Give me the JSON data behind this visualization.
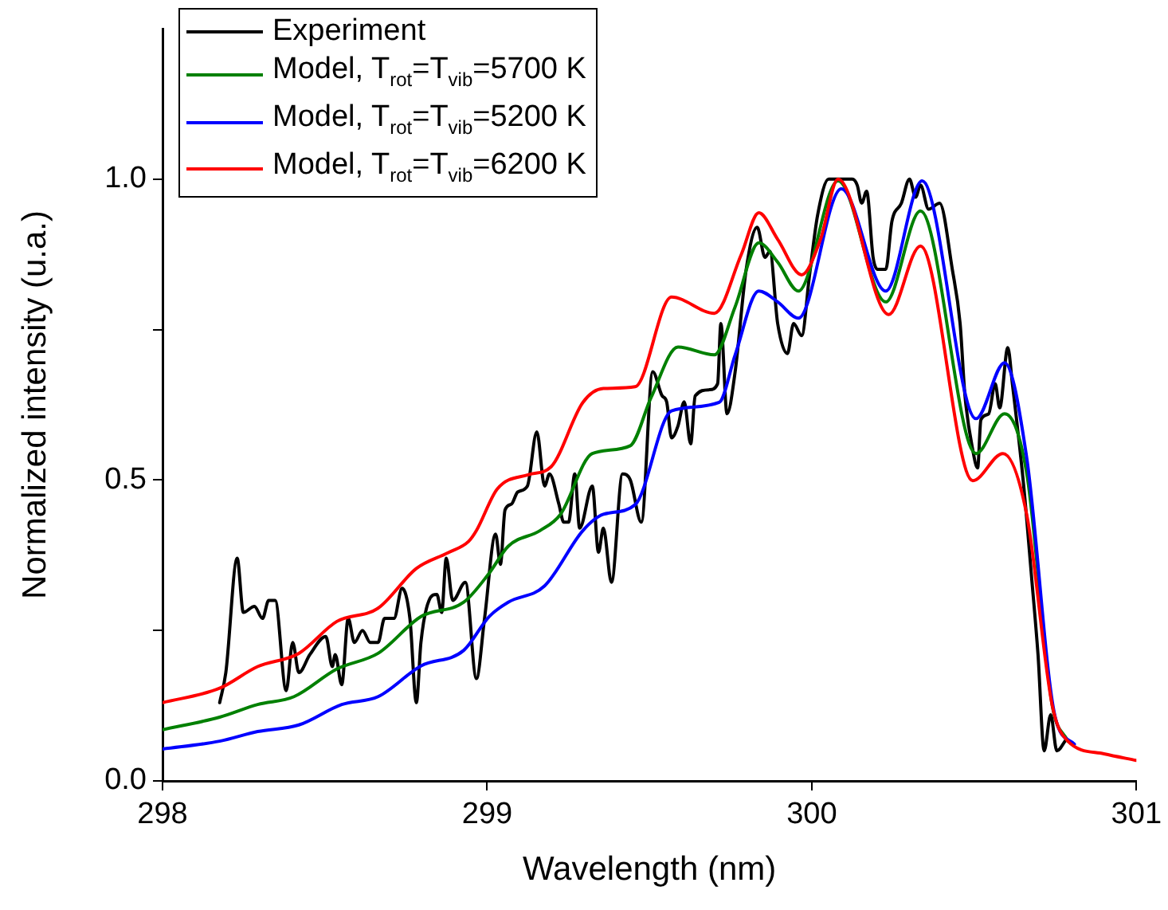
{
  "chart_data": {
    "type": "line",
    "xlabel": "Wavelength (nm)",
    "ylabel": "Normalized intensity (u.a.)",
    "xlim": [
      298,
      301
    ],
    "xticks": [
      298,
      299,
      300,
      301
    ],
    "ylim": [
      0,
      1.25
    ],
    "yticks": [
      {
        "value": 0,
        "label": "0.0"
      },
      {
        "value": 0.25,
        "label": null
      },
      {
        "value": 0.5,
        "label": "0.5"
      },
      {
        "value": 0.75,
        "label": null
      },
      {
        "value": 1,
        "label": "1.0"
      }
    ],
    "grid": false,
    "legend": "top left",
    "marker": "none",
    "line_style": "solid",
    "series": [
      {
        "name": "Experiment",
        "color": "#000000",
        "x": [
          298.176,
          298.195,
          298.23,
          298.249,
          298.283,
          298.308,
          298.327,
          298.347,
          298.381,
          298.401,
          298.42,
          298.454,
          298.503,
          298.523,
          298.532,
          298.552,
          298.572,
          298.591,
          298.616,
          298.64,
          298.664,
          298.684,
          298.713,
          298.738,
          298.762,
          298.782,
          298.796,
          298.821,
          298.845,
          298.86,
          298.874,
          298.894,
          298.933,
          298.967,
          298.992,
          299.026,
          299.041,
          299.055,
          299.075,
          299.094,
          299.124,
          299.153,
          299.177,
          299.192,
          299.221,
          299.236,
          299.251,
          299.27,
          299.285,
          299.324,
          299.343,
          299.358,
          299.383,
          299.417,
          299.441,
          299.475,
          299.51,
          299.539,
          299.553,
          299.568,
          299.588,
          299.607,
          299.627,
          299.641,
          299.685,
          299.71,
          299.72,
          299.739,
          299.764,
          299.798,
          299.832,
          299.856,
          299.871,
          299.895,
          299.925,
          299.944,
          299.969,
          299.993,
          300.018,
          300.052,
          300.125,
          300.14,
          300.154,
          300.169,
          300.189,
          300.203,
          300.228,
          300.247,
          300.276,
          300.301,
          300.32,
          300.335,
          300.36,
          300.394,
          300.433,
          300.457,
          300.472,
          300.496,
          300.511,
          300.521,
          300.545,
          300.565,
          300.579,
          300.604,
          300.618,
          300.653,
          300.677,
          300.697,
          300.716,
          300.736,
          300.755,
          300.785
        ],
        "values": [
          0.13,
          0.18,
          0.37,
          0.28,
          0.29,
          0.27,
          0.3,
          0.3,
          0.15,
          0.23,
          0.18,
          0.21,
          0.24,
          0.19,
          0.21,
          0.16,
          0.27,
          0.23,
          0.25,
          0.23,
          0.23,
          0.27,
          0.27,
          0.32,
          0.27,
          0.13,
          0.23,
          0.3,
          0.31,
          0.28,
          0.37,
          0.3,
          0.33,
          0.17,
          0.27,
          0.41,
          0.36,
          0.45,
          0.46,
          0.48,
          0.49,
          0.58,
          0.49,
          0.51,
          0.46,
          0.43,
          0.43,
          0.51,
          0.42,
          0.49,
          0.38,
          0.42,
          0.33,
          0.51,
          0.5,
          0.43,
          0.68,
          0.64,
          0.63,
          0.57,
          0.59,
          0.63,
          0.56,
          0.64,
          0.65,
          0.66,
          0.76,
          0.61,
          0.68,
          0.85,
          0.92,
          0.87,
          0.88,
          0.76,
          0.71,
          0.76,
          0.74,
          0.84,
          0.94,
          1.0,
          1.0,
          0.99,
          0.96,
          0.98,
          0.87,
          0.85,
          0.85,
          0.93,
          0.96,
          1.0,
          0.97,
          0.99,
          0.95,
          0.96,
          0.85,
          0.76,
          0.64,
          0.55,
          0.52,
          0.6,
          0.61,
          0.66,
          0.62,
          0.72,
          0.66,
          0.49,
          0.34,
          0.21,
          0.05,
          0.11,
          0.05,
          0.07
        ]
      },
      {
        "name": "Model, T$_{rot}$=T$_{vib}$=5700 K",
        "color": "#008000",
        "x": [
          298,
          298.176,
          298.293,
          298.405,
          298.537,
          298.664,
          298.796,
          298.928,
          299.006,
          299.065,
          299.163,
          299.226,
          299.324,
          299.441,
          299.505,
          299.588,
          299.7,
          299.764,
          299.837,
          299.895,
          299.959,
          300.081,
          300.228,
          300.335,
          300.506,
          300.594,
          300.662,
          300.741,
          300.789
        ],
        "values": [
          0.085,
          0.106,
          0.127,
          0.14,
          0.186,
          0.212,
          0.273,
          0.297,
          0.345,
          0.39,
          0.416,
          0.443,
          0.544,
          0.557,
          0.637,
          0.721,
          0.708,
          0.788,
          0.894,
          0.862,
          0.814,
          0.997,
          0.796,
          0.947,
          0.544,
          0.61,
          0.512,
          0.125,
          0.066
        ]
      },
      {
        "name": "Model, T$_{rot}$=T$_{vib}$=5200 K",
        "color": "#0000ff",
        "x": [
          298,
          298.176,
          298.293,
          298.42,
          298.552,
          298.664,
          298.796,
          298.928,
          299.006,
          299.065,
          299.177,
          299.295,
          299.358,
          299.456,
          299.568,
          299.715,
          299.764,
          299.837,
          299.895,
          299.959,
          300.091,
          300.228,
          300.34,
          300.506,
          300.594,
          300.662,
          300.75,
          300.809
        ],
        "values": [
          0.053,
          0.066,
          0.082,
          0.093,
          0.127,
          0.14,
          0.191,
          0.217,
          0.273,
          0.297,
          0.324,
          0.416,
          0.443,
          0.459,
          0.615,
          0.629,
          0.708,
          0.814,
          0.796,
          0.769,
          0.984,
          0.814,
          0.997,
          0.602,
          0.695,
          0.538,
          0.106,
          0.061
        ]
      },
      {
        "name": "Model, T$_{rot}$=T$_{vib}$=6200 K",
        "color": "#ff0000",
        "x": [
          298,
          298.176,
          298.293,
          298.42,
          298.537,
          298.664,
          298.782,
          298.879,
          298.943,
          298.967,
          299.031,
          299.128,
          299.197,
          299.295,
          299.358,
          299.456,
          299.568,
          299.7,
          299.783,
          299.837,
          299.895,
          299.969,
          300.027,
          300.081,
          300.237,
          300.335,
          300.496,
          300.589,
          300.662,
          300.741,
          300.789,
          300.9,
          301
        ],
        "values": [
          0.13,
          0.154,
          0.19,
          0.212,
          0.265,
          0.287,
          0.353,
          0.379,
          0.398,
          0.416,
          0.485,
          0.509,
          0.522,
          0.629,
          0.652,
          0.655,
          0.804,
          0.777,
          0.875,
          0.944,
          0.9,
          0.841,
          0.9,
          1.0,
          0.775,
          0.889,
          0.499,
          0.544,
          0.443,
          0.125,
          0.066,
          0.045,
          0.034
        ]
      }
    ]
  }
}
